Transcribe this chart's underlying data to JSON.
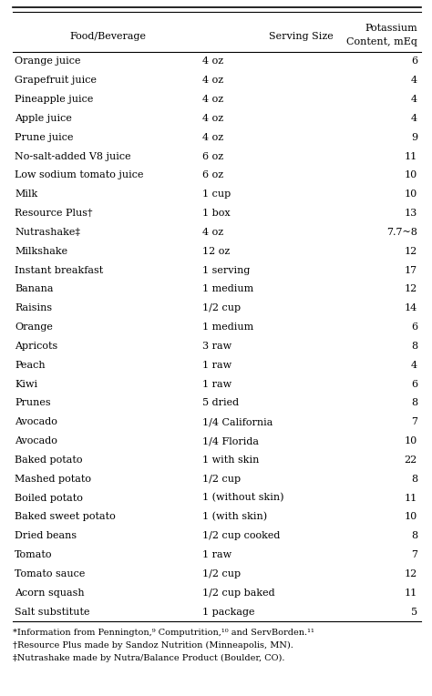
{
  "col_headers_line1": [
    "Food/Beverage",
    "Serving Size",
    "Potassium"
  ],
  "col_headers_line2": [
    "",
    "",
    "Content, mEq"
  ],
  "rows": [
    [
      "Orange juice",
      "4 oz",
      "6"
    ],
    [
      "Grapefruit juice",
      "4 oz",
      "4"
    ],
    [
      "Pineapple juice",
      "4 oz",
      "4"
    ],
    [
      "Apple juice",
      "4 oz",
      "4"
    ],
    [
      "Prune juice",
      "4 oz",
      "9"
    ],
    [
      "No-salt-added V8 juice",
      "6 oz",
      "11"
    ],
    [
      "Low sodium tomato juice",
      "6 oz",
      "10"
    ],
    [
      "Milk",
      "1 cup",
      "10"
    ],
    [
      "Resource Plus†",
      "1 box",
      "13"
    ],
    [
      "Nutrashake‡",
      "4 oz",
      "7.7~8"
    ],
    [
      "Milkshake",
      "12 oz",
      "12"
    ],
    [
      "Instant breakfast",
      "1 serving",
      "17"
    ],
    [
      "Banana",
      "1 medium",
      "12"
    ],
    [
      "Raisins",
      "1/2 cup",
      "14"
    ],
    [
      "Orange",
      "1 medium",
      "6"
    ],
    [
      "Apricots",
      "3 raw",
      "8"
    ],
    [
      "Peach",
      "1 raw",
      "4"
    ],
    [
      "Kiwi",
      "1 raw",
      "6"
    ],
    [
      "Prunes",
      "5 dried",
      "8"
    ],
    [
      "Avocado",
      "1/4 California",
      "7"
    ],
    [
      "Avocado",
      "1/4 Florida",
      "10"
    ],
    [
      "Baked potato",
      "1 with skin",
      "22"
    ],
    [
      "Mashed potato",
      "1/2 cup",
      "8"
    ],
    [
      "Boiled potato",
      "1 (without skin)",
      "11"
    ],
    [
      "Baked sweet potato",
      "1 (with skin)",
      "10"
    ],
    [
      "Dried beans",
      "1/2 cup cooked",
      "8"
    ],
    [
      "Tomato",
      "1 raw",
      "7"
    ],
    [
      "Tomato sauce",
      "1/2 cup",
      "12"
    ],
    [
      "Acorn squash",
      "1/2 cup baked",
      "11"
    ],
    [
      "Salt substitute",
      "1 package",
      "5"
    ]
  ],
  "footnotes": [
    "*Information from Pennington,⁹ Computrition,¹⁰ and ServBorden.¹¹",
    "†Resource Plus made by Sandoz Nutrition (Minneapolis, MN).",
    "‡Nutrashake made by Nutra/Balance Product (Boulder, CO)."
  ],
  "bg_color": "#ffffff",
  "text_color": "#000000",
  "font_size": 8.0,
  "header_font_size": 8.0
}
